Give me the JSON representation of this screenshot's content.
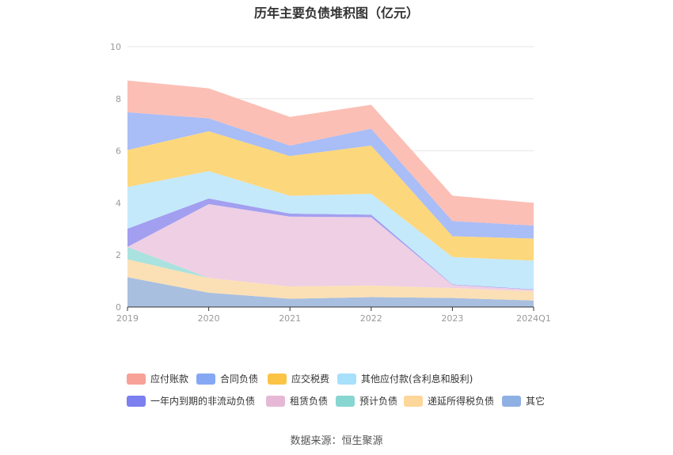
{
  "chart_data": {
    "type": "area",
    "stacked": true,
    "title": "历年主要负债堆积图（亿元）",
    "categories": [
      "2019",
      "2020",
      "2021",
      "2022",
      "2023",
      "2024Q1"
    ],
    "ylim": [
      0,
      10
    ],
    "yticks": [
      0,
      2,
      4,
      6,
      8,
      10
    ],
    "grid": true,
    "legend_position": "bottom",
    "series": [
      {
        "name": "其它",
        "color": "#a9bfe0",
        "values": [
          1.15,
          0.55,
          0.32,
          0.38,
          0.35,
          0.25
        ]
      },
      {
        "name": "递延所得税负债",
        "color": "#fbe0b5",
        "values": [
          0.68,
          0.57,
          0.47,
          0.45,
          0.38,
          0.35
        ]
      },
      {
        "name": "预计负债",
        "color": "#a9e2de",
        "values": [
          0.48,
          0.0,
          0.0,
          0.0,
          0.0,
          0.0
        ]
      },
      {
        "name": "租赁负债",
        "color": "#eecfe4",
        "values": [
          0.0,
          2.83,
          2.68,
          2.62,
          0.12,
          0.06
        ]
      },
      {
        "name": "一年内到期的非流动负债",
        "color": "#a39ff0",
        "values": [
          0.7,
          0.22,
          0.12,
          0.1,
          0.02,
          0.02
        ]
      },
      {
        "name": "其他应付款(含利息和股利)",
        "color": "#c4e9fb",
        "values": [
          1.6,
          1.05,
          0.68,
          0.8,
          1.05,
          1.1
        ]
      },
      {
        "name": "应交税费",
        "color": "#fdd77c",
        "values": [
          1.42,
          1.53,
          1.53,
          1.85,
          0.8,
          0.85
        ]
      },
      {
        "name": "合同负债",
        "color": "#a9bdf6",
        "values": [
          1.45,
          0.5,
          0.4,
          0.65,
          0.58,
          0.5
        ]
      },
      {
        "name": "应付账款",
        "color": "#fbbfb6",
        "values": [
          1.22,
          1.15,
          1.1,
          0.92,
          0.98,
          0.87
        ]
      }
    ],
    "legend": [
      {
        "name": "应付账款",
        "color": "#f7a198"
      },
      {
        "name": "合同负债",
        "color": "#86a8f4"
      },
      {
        "name": "应交税费",
        "color": "#fbc447"
      },
      {
        "name": "其他应付款(含利息和股利)",
        "color": "#a7e0fb"
      },
      {
        "name": "一年内到期的非流动负债",
        "color": "#7b7ff0"
      },
      {
        "name": "租赁负债",
        "color": "#e7b8d6"
      },
      {
        "name": "预计负债",
        "color": "#88d6d1"
      },
      {
        "name": "递延所得税负债",
        "color": "#fdd699"
      },
      {
        "name": "其它",
        "color": "#8fb0e3"
      }
    ]
  },
  "source_text": "数据来源：恒生聚源"
}
